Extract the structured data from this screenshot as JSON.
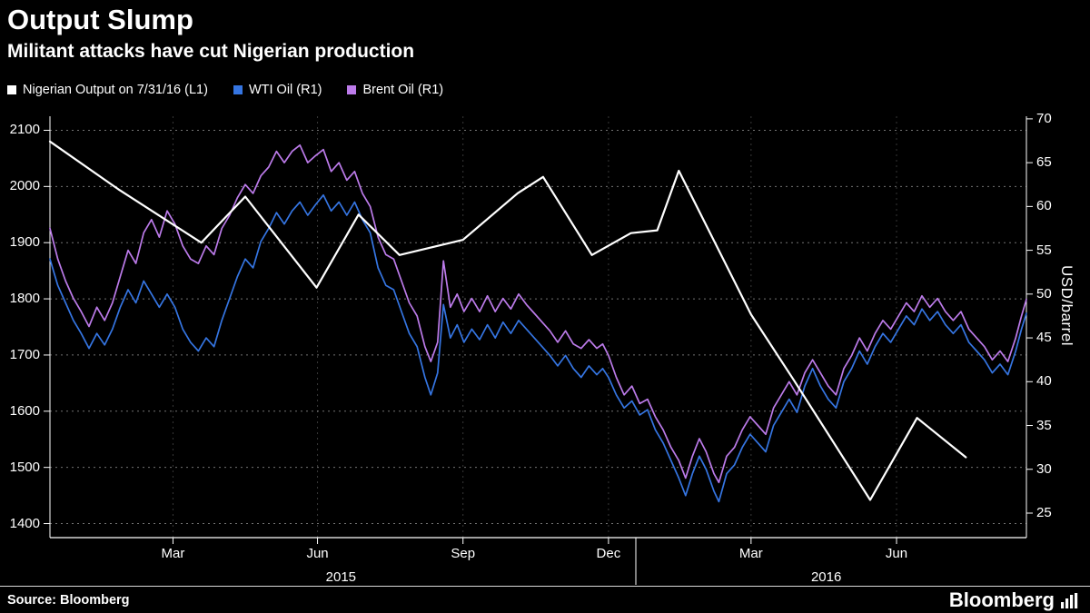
{
  "footer": {
    "source": "Source: Bloomberg",
    "brand": "Bloomberg"
  },
  "chart_data": {
    "type": "line",
    "title": "Output Slump",
    "subtitle": "Militant attacks have cut Nigerian production",
    "background": "#000000",
    "grid": "dashed",
    "legend_position": "top-left",
    "left_axis": {
      "ticks": [
        2100,
        2000,
        1900,
        1800,
        1700,
        1600,
        1500,
        1400
      ],
      "range": [
        1375,
        2125
      ]
    },
    "right_axis": {
      "label": "USD/barrel",
      "ticks": [
        70,
        65,
        60,
        55,
        50,
        45,
        40,
        35,
        30,
        25
      ],
      "range": [
        22.2,
        70.3
      ]
    },
    "x_axis": {
      "month_ticks": [
        {
          "label": "Mar",
          "x": 12.6
        },
        {
          "label": "Jun",
          "x": 27.4
        },
        {
          "label": "Sep",
          "x": 42.3
        },
        {
          "label": "Dec",
          "x": 57.2
        },
        {
          "label": "Mar",
          "x": 71.8
        },
        {
          "label": "Jun",
          "x": 86.7
        }
      ],
      "year_labels": [
        {
          "label": "2015",
          "x": 29.8
        },
        {
          "label": "2016",
          "x": 79.5
        }
      ],
      "year_divider_x": 60.0
    },
    "series": [
      {
        "id": "nigerian-output",
        "name": "Nigerian Output on 7/31/16 (L1)",
        "axis": "left",
        "color": "#ffffff",
        "width": 2.2,
        "points": [
          [
            0,
            2080
          ],
          [
            7,
            1995
          ],
          [
            15.5,
            1900
          ],
          [
            20,
            1982
          ],
          [
            27.3,
            1820
          ],
          [
            31.6,
            1950
          ],
          [
            35.8,
            1878
          ],
          [
            42.3,
            1905
          ],
          [
            47.9,
            1988
          ],
          [
            50.5,
            2017
          ],
          [
            55.5,
            1878
          ],
          [
            59.5,
            1917
          ],
          [
            62.2,
            1922
          ],
          [
            64.4,
            2028
          ],
          [
            71.8,
            1772
          ],
          [
            76.2,
            1655
          ],
          [
            84,
            1442
          ],
          [
            88.8,
            1588
          ],
          [
            93.8,
            1518
          ]
        ]
      },
      {
        "id": "wti-oil",
        "name": "WTI Oil (R1)",
        "axis": "right",
        "color": "#3575e2",
        "width": 1.7,
        "points": [
          [
            0,
            54
          ],
          [
            0.8,
            51
          ],
          [
            1.6,
            49
          ],
          [
            2.4,
            47
          ],
          [
            3.2,
            45.5
          ],
          [
            4,
            43.8
          ],
          [
            4.8,
            45.5
          ],
          [
            5.6,
            44.2
          ],
          [
            6.4,
            46
          ],
          [
            7.2,
            48.5
          ],
          [
            8,
            50.5
          ],
          [
            8.8,
            49
          ],
          [
            9.6,
            51.5
          ],
          [
            10.4,
            50
          ],
          [
            11.2,
            48.5
          ],
          [
            12,
            50
          ],
          [
            12.8,
            48.5
          ],
          [
            13.6,
            46
          ],
          [
            14.4,
            44.5
          ],
          [
            15.2,
            43.5
          ],
          [
            16,
            45
          ],
          [
            16.8,
            44
          ],
          [
            17.6,
            47
          ],
          [
            18.4,
            49.5
          ],
          [
            19.2,
            52
          ],
          [
            20,
            54
          ],
          [
            20.8,
            53
          ],
          [
            21.6,
            56
          ],
          [
            22.4,
            57.5
          ],
          [
            23.2,
            59.3
          ],
          [
            24,
            58
          ],
          [
            24.8,
            59.5
          ],
          [
            25.6,
            60.5
          ],
          [
            26.4,
            59
          ],
          [
            27.2,
            60.2
          ],
          [
            28,
            61.3
          ],
          [
            28.8,
            59.5
          ],
          [
            29.6,
            60.5
          ],
          [
            30.4,
            59
          ],
          [
            31.2,
            60.5
          ],
          [
            32,
            58.5
          ],
          [
            32.8,
            57
          ],
          [
            33.6,
            53
          ],
          [
            34.4,
            51
          ],
          [
            35.2,
            50.5
          ],
          [
            36,
            48
          ],
          [
            36.8,
            45.5
          ],
          [
            37.6,
            44
          ],
          [
            38.4,
            40.5
          ],
          [
            39,
            38.5
          ],
          [
            39.7,
            41
          ],
          [
            40.3,
            48.8
          ],
          [
            41,
            45
          ],
          [
            41.7,
            46.5
          ],
          [
            42.4,
            44.5
          ],
          [
            43.2,
            46
          ],
          [
            44,
            44.8
          ],
          [
            44.8,
            46.5
          ],
          [
            45.6,
            45
          ],
          [
            46.4,
            46.8
          ],
          [
            47.2,
            45.5
          ],
          [
            48,
            47
          ],
          [
            48.8,
            46
          ],
          [
            49.6,
            45
          ],
          [
            50.4,
            44
          ],
          [
            51.2,
            43
          ],
          [
            52,
            41.8
          ],
          [
            52.8,
            43
          ],
          [
            53.6,
            41.5
          ],
          [
            54.4,
            40.5
          ],
          [
            55.2,
            41.8
          ],
          [
            56,
            40.8
          ],
          [
            56.6,
            41.5
          ],
          [
            57.2,
            40.5
          ],
          [
            58,
            38.5
          ],
          [
            58.8,
            37
          ],
          [
            59.6,
            37.8
          ],
          [
            60.4,
            36.2
          ],
          [
            61.2,
            36.8
          ],
          [
            62,
            34.5
          ],
          [
            62.8,
            33
          ],
          [
            63.6,
            31
          ],
          [
            64.4,
            29
          ],
          [
            65.1,
            27
          ],
          [
            65.8,
            29.5
          ],
          [
            66.5,
            31.5
          ],
          [
            67.2,
            30
          ],
          [
            68,
            27.5
          ],
          [
            68.5,
            26.3
          ],
          [
            69.3,
            29.5
          ],
          [
            70.1,
            30.5
          ],
          [
            70.9,
            32.5
          ],
          [
            71.7,
            34
          ],
          [
            72.5,
            33
          ],
          [
            73.3,
            32
          ],
          [
            74.1,
            35
          ],
          [
            74.9,
            36.5
          ],
          [
            75.7,
            38
          ],
          [
            76.5,
            36.5
          ],
          [
            77.3,
            39.5
          ],
          [
            78.1,
            41.5
          ],
          [
            78.9,
            39.5
          ],
          [
            79.7,
            38
          ],
          [
            80.5,
            37
          ],
          [
            81.3,
            40
          ],
          [
            82.1,
            41.5
          ],
          [
            82.9,
            43.5
          ],
          [
            83.7,
            42
          ],
          [
            84.5,
            44
          ],
          [
            85.3,
            45.5
          ],
          [
            86.1,
            44.5
          ],
          [
            86.9,
            46
          ],
          [
            87.7,
            47.5
          ],
          [
            88.5,
            46.5
          ],
          [
            89.3,
            48.3
          ],
          [
            90.1,
            47
          ],
          [
            90.9,
            48
          ],
          [
            91.7,
            46.5
          ],
          [
            92.5,
            45.5
          ],
          [
            93.3,
            46.5
          ],
          [
            94.1,
            44.5
          ],
          [
            94.9,
            43.5
          ],
          [
            95.7,
            42.5
          ],
          [
            96.5,
            41
          ],
          [
            97.3,
            42
          ],
          [
            98.1,
            40.8
          ],
          [
            98.9,
            43.5
          ],
          [
            99.5,
            46
          ],
          [
            100,
            47.8
          ]
        ]
      },
      {
        "id": "brent-oil",
        "name": "Brent Oil (R1)",
        "axis": "right",
        "color": "#bc7bea",
        "width": 1.7,
        "points": [
          [
            0,
            57.5
          ],
          [
            0.8,
            54
          ],
          [
            1.6,
            51.5
          ],
          [
            2.4,
            49.5
          ],
          [
            3.2,
            48
          ],
          [
            4,
            46.3
          ],
          [
            4.8,
            48.5
          ],
          [
            5.6,
            47
          ],
          [
            6.4,
            49
          ],
          [
            7.2,
            52
          ],
          [
            8,
            55
          ],
          [
            8.8,
            53.5
          ],
          [
            9.6,
            57
          ],
          [
            10.4,
            58.5
          ],
          [
            11.2,
            56.5
          ],
          [
            12,
            59.5
          ],
          [
            12.8,
            58
          ],
          [
            13.6,
            55.5
          ],
          [
            14.4,
            54
          ],
          [
            15.2,
            53.5
          ],
          [
            16,
            55.5
          ],
          [
            16.8,
            54.5
          ],
          [
            17.6,
            57.5
          ],
          [
            18.4,
            59
          ],
          [
            19.2,
            61
          ],
          [
            20,
            62.5
          ],
          [
            20.8,
            61.5
          ],
          [
            21.6,
            63.5
          ],
          [
            22.4,
            64.5
          ],
          [
            23.2,
            66.3
          ],
          [
            24,
            65
          ],
          [
            24.8,
            66.3
          ],
          [
            25.6,
            67
          ],
          [
            26.4,
            65
          ],
          [
            27.2,
            65.8
          ],
          [
            28,
            66.5
          ],
          [
            28.8,
            64
          ],
          [
            29.6,
            65
          ],
          [
            30.4,
            63
          ],
          [
            31.2,
            64
          ],
          [
            32,
            61.5
          ],
          [
            32.8,
            60
          ],
          [
            33.6,
            56.5
          ],
          [
            34.4,
            54.5
          ],
          [
            35.2,
            54
          ],
          [
            36,
            51.5
          ],
          [
            36.8,
            49
          ],
          [
            37.6,
            47.5
          ],
          [
            38.4,
            44
          ],
          [
            39,
            42.3
          ],
          [
            39.7,
            44.5
          ],
          [
            40.3,
            53.8
          ],
          [
            41,
            48.5
          ],
          [
            41.7,
            50
          ],
          [
            42.4,
            48
          ],
          [
            43.2,
            49.5
          ],
          [
            44,
            48
          ],
          [
            44.8,
            49.8
          ],
          [
            45.6,
            48
          ],
          [
            46.4,
            49.5
          ],
          [
            47.2,
            48.3
          ],
          [
            48,
            50
          ],
          [
            48.8,
            48.8
          ],
          [
            49.6,
            47.8
          ],
          [
            50.4,
            46.8
          ],
          [
            51.2,
            45.8
          ],
          [
            52,
            44.5
          ],
          [
            52.8,
            45.8
          ],
          [
            53.6,
            44.3
          ],
          [
            54.4,
            43.8
          ],
          [
            55.2,
            44.8
          ],
          [
            56,
            43.8
          ],
          [
            56.6,
            44.3
          ],
          [
            57.2,
            43
          ],
          [
            58,
            40.5
          ],
          [
            58.8,
            38.5
          ],
          [
            59.6,
            39.5
          ],
          [
            60.4,
            37.5
          ],
          [
            61.2,
            38
          ],
          [
            62,
            36
          ],
          [
            62.8,
            34.5
          ],
          [
            63.6,
            32.5
          ],
          [
            64.4,
            31
          ],
          [
            65.1,
            29
          ],
          [
            65.8,
            31.5
          ],
          [
            66.5,
            33.5
          ],
          [
            67.2,
            32
          ],
          [
            68,
            29.5
          ],
          [
            68.5,
            28.5
          ],
          [
            69.3,
            31.5
          ],
          [
            70.1,
            32.5
          ],
          [
            70.9,
            34.5
          ],
          [
            71.7,
            36
          ],
          [
            72.5,
            35
          ],
          [
            73.3,
            34
          ],
          [
            74.1,
            37
          ],
          [
            74.9,
            38.5
          ],
          [
            75.7,
            40
          ],
          [
            76.5,
            38.5
          ],
          [
            77.3,
            41
          ],
          [
            78.1,
            42.5
          ],
          [
            78.9,
            41
          ],
          [
            79.7,
            39.5
          ],
          [
            80.5,
            38.5
          ],
          [
            81.3,
            41.5
          ],
          [
            82.1,
            43
          ],
          [
            82.9,
            45
          ],
          [
            83.7,
            43.5
          ],
          [
            84.5,
            45.5
          ],
          [
            85.3,
            47
          ],
          [
            86.1,
            46
          ],
          [
            86.9,
            47.5
          ],
          [
            87.7,
            49
          ],
          [
            88.5,
            48
          ],
          [
            89.3,
            49.8
          ],
          [
            90.1,
            48.5
          ],
          [
            90.9,
            49.5
          ],
          [
            91.7,
            48
          ],
          [
            92.5,
            47
          ],
          [
            93.3,
            48
          ],
          [
            94.1,
            46
          ],
          [
            94.9,
            45
          ],
          [
            95.7,
            44
          ],
          [
            96.5,
            42.5
          ],
          [
            97.3,
            43.5
          ],
          [
            98.1,
            42.3
          ],
          [
            98.9,
            45
          ],
          [
            99.5,
            47.5
          ],
          [
            100,
            49.4
          ]
        ]
      }
    ]
  }
}
